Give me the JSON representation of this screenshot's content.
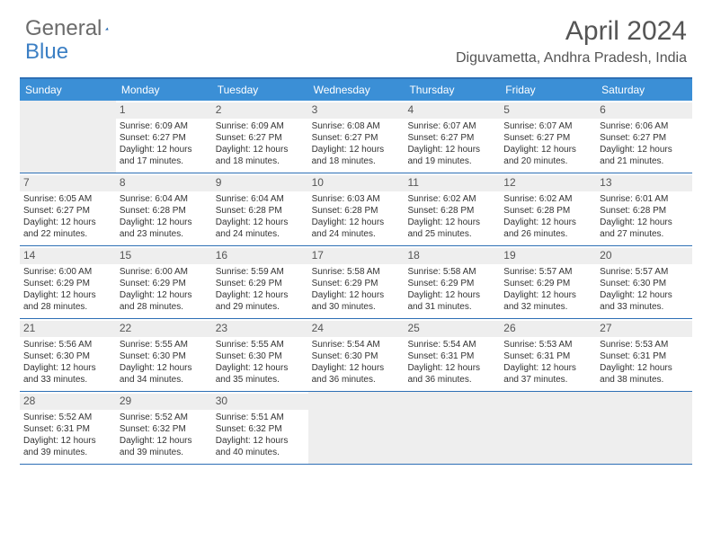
{
  "logo": {
    "part1": "General",
    "part2": "Blue"
  },
  "title": "April 2024",
  "location": "Diguvametta, Andhra Pradesh, India",
  "colors": {
    "header_bg": "#3b8fd6",
    "border": "#2d6fb5",
    "shade": "#eeeeee"
  },
  "day_names": [
    "Sunday",
    "Monday",
    "Tuesday",
    "Wednesday",
    "Thursday",
    "Friday",
    "Saturday"
  ],
  "weeks": [
    [
      null,
      {
        "n": "1",
        "sr": "6:09 AM",
        "ss": "6:27 PM",
        "dl": "12 hours and 17 minutes."
      },
      {
        "n": "2",
        "sr": "6:09 AM",
        "ss": "6:27 PM",
        "dl": "12 hours and 18 minutes."
      },
      {
        "n": "3",
        "sr": "6:08 AM",
        "ss": "6:27 PM",
        "dl": "12 hours and 18 minutes."
      },
      {
        "n": "4",
        "sr": "6:07 AM",
        "ss": "6:27 PM",
        "dl": "12 hours and 19 minutes."
      },
      {
        "n": "5",
        "sr": "6:07 AM",
        "ss": "6:27 PM",
        "dl": "12 hours and 20 minutes."
      },
      {
        "n": "6",
        "sr": "6:06 AM",
        "ss": "6:27 PM",
        "dl": "12 hours and 21 minutes."
      }
    ],
    [
      {
        "n": "7",
        "sr": "6:05 AM",
        "ss": "6:27 PM",
        "dl": "12 hours and 22 minutes."
      },
      {
        "n": "8",
        "sr": "6:04 AM",
        "ss": "6:28 PM",
        "dl": "12 hours and 23 minutes."
      },
      {
        "n": "9",
        "sr": "6:04 AM",
        "ss": "6:28 PM",
        "dl": "12 hours and 24 minutes."
      },
      {
        "n": "10",
        "sr": "6:03 AM",
        "ss": "6:28 PM",
        "dl": "12 hours and 24 minutes."
      },
      {
        "n": "11",
        "sr": "6:02 AM",
        "ss": "6:28 PM",
        "dl": "12 hours and 25 minutes."
      },
      {
        "n": "12",
        "sr": "6:02 AM",
        "ss": "6:28 PM",
        "dl": "12 hours and 26 minutes."
      },
      {
        "n": "13",
        "sr": "6:01 AM",
        "ss": "6:28 PM",
        "dl": "12 hours and 27 minutes."
      }
    ],
    [
      {
        "n": "14",
        "sr": "6:00 AM",
        "ss": "6:29 PM",
        "dl": "12 hours and 28 minutes."
      },
      {
        "n": "15",
        "sr": "6:00 AM",
        "ss": "6:29 PM",
        "dl": "12 hours and 28 minutes."
      },
      {
        "n": "16",
        "sr": "5:59 AM",
        "ss": "6:29 PM",
        "dl": "12 hours and 29 minutes."
      },
      {
        "n": "17",
        "sr": "5:58 AM",
        "ss": "6:29 PM",
        "dl": "12 hours and 30 minutes."
      },
      {
        "n": "18",
        "sr": "5:58 AM",
        "ss": "6:29 PM",
        "dl": "12 hours and 31 minutes."
      },
      {
        "n": "19",
        "sr": "5:57 AM",
        "ss": "6:29 PM",
        "dl": "12 hours and 32 minutes."
      },
      {
        "n": "20",
        "sr": "5:57 AM",
        "ss": "6:30 PM",
        "dl": "12 hours and 33 minutes."
      }
    ],
    [
      {
        "n": "21",
        "sr": "5:56 AM",
        "ss": "6:30 PM",
        "dl": "12 hours and 33 minutes."
      },
      {
        "n": "22",
        "sr": "5:55 AM",
        "ss": "6:30 PM",
        "dl": "12 hours and 34 minutes."
      },
      {
        "n": "23",
        "sr": "5:55 AM",
        "ss": "6:30 PM",
        "dl": "12 hours and 35 minutes."
      },
      {
        "n": "24",
        "sr": "5:54 AM",
        "ss": "6:30 PM",
        "dl": "12 hours and 36 minutes."
      },
      {
        "n": "25",
        "sr": "5:54 AM",
        "ss": "6:31 PM",
        "dl": "12 hours and 36 minutes."
      },
      {
        "n": "26",
        "sr": "5:53 AM",
        "ss": "6:31 PM",
        "dl": "12 hours and 37 minutes."
      },
      {
        "n": "27",
        "sr": "5:53 AM",
        "ss": "6:31 PM",
        "dl": "12 hours and 38 minutes."
      }
    ],
    [
      {
        "n": "28",
        "sr": "5:52 AM",
        "ss": "6:31 PM",
        "dl": "12 hours and 39 minutes."
      },
      {
        "n": "29",
        "sr": "5:52 AM",
        "ss": "6:32 PM",
        "dl": "12 hours and 39 minutes."
      },
      {
        "n": "30",
        "sr": "5:51 AM",
        "ss": "6:32 PM",
        "dl": "12 hours and 40 minutes."
      },
      null,
      null,
      null,
      null
    ]
  ],
  "labels": {
    "sunrise": "Sunrise:",
    "sunset": "Sunset:",
    "daylight": "Daylight:"
  }
}
